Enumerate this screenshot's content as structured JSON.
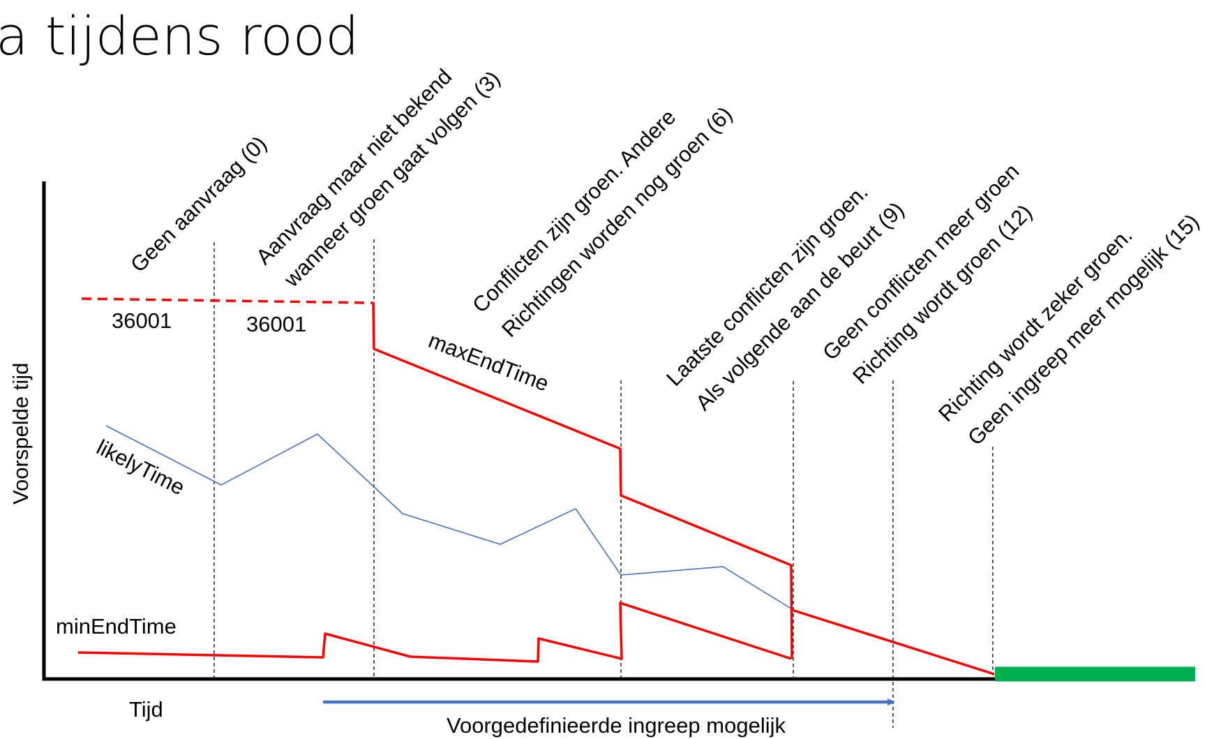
{
  "title": "a tijdens rood",
  "axes": {
    "y_label": "Voorspelde tijd",
    "x_label": "Tijd"
  },
  "phases": [
    {
      "line1": "Geen aanvraag (0)"
    },
    {
      "line1": "Aanvraag maar niet bekend",
      "line2": "wanneer groen gaat volgen (3)"
    },
    {
      "line1": "Conflicten zijn groen. Andere",
      "line2": "Richtingen worden nog groen (6)"
    },
    {
      "line1": "Laatste conflicten zijn groen.",
      "line2": "Als volgende aan de beurt (9)"
    },
    {
      "line1": "Geen conflicten meer groen",
      "line2": "Richting wordt groen (12)"
    },
    {
      "line1": "Richting wordt zeker groen.",
      "line2": "Geen ingreep meer mogelijk (15)"
    }
  ],
  "value_labels": [
    "36001",
    "36001"
  ],
  "series_labels": {
    "max": "maxEndTime",
    "likely": "likelyTime",
    "min": "minEndTime"
  },
  "intervention_label": "Voorgedefinieerde ingreep mogelijk",
  "colors": {
    "max_end": "#ff0000",
    "min_end": "#ff0000",
    "likely": "#4472c4",
    "green_phase": "#00b050",
    "arrow": "#4472c4",
    "axis": "#000000"
  }
}
